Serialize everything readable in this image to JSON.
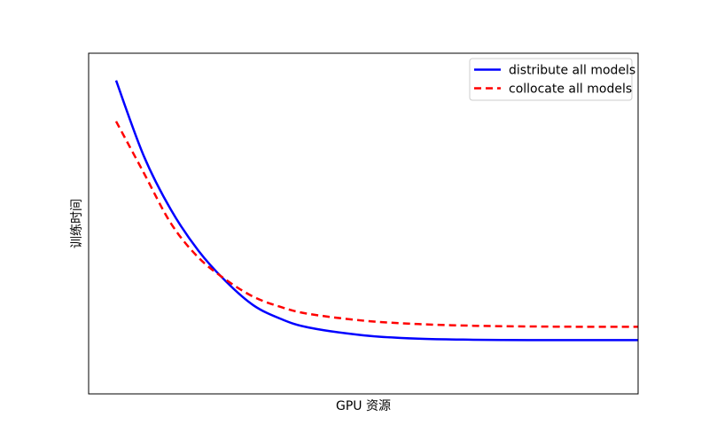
{
  "chart_data": {
    "type": "line",
    "xlabel": "GPU 资源",
    "ylabel": "训练时间",
    "xticks": false,
    "yticks": false,
    "grid": false,
    "legend_position": "top-right",
    "xlim": [
      0,
      10
    ],
    "ylim": [
      0,
      10
    ],
    "series": [
      {
        "name": "distribute all models",
        "color": "#0000ff",
        "linestyle": "solid",
        "x": [
          0.5,
          1,
          1.5,
          2,
          2.5,
          3,
          3.5,
          4,
          5,
          6,
          7,
          8,
          9,
          10
        ],
        "y": [
          9.2,
          7.0,
          5.4,
          4.2,
          3.3,
          2.6,
          2.2,
          1.95,
          1.72,
          1.62,
          1.59,
          1.58,
          1.58,
          1.58
        ]
      },
      {
        "name": "collocate all models",
        "color": "#ff0000",
        "linestyle": "dashed",
        "x": [
          0.5,
          1,
          1.5,
          2,
          2.5,
          3,
          3.5,
          4,
          5,
          6,
          7,
          8,
          9,
          10
        ],
        "y": [
          8.0,
          6.5,
          5.0,
          4.0,
          3.35,
          2.85,
          2.55,
          2.35,
          2.15,
          2.05,
          2.0,
          1.98,
          1.97,
          1.97
        ]
      }
    ]
  }
}
